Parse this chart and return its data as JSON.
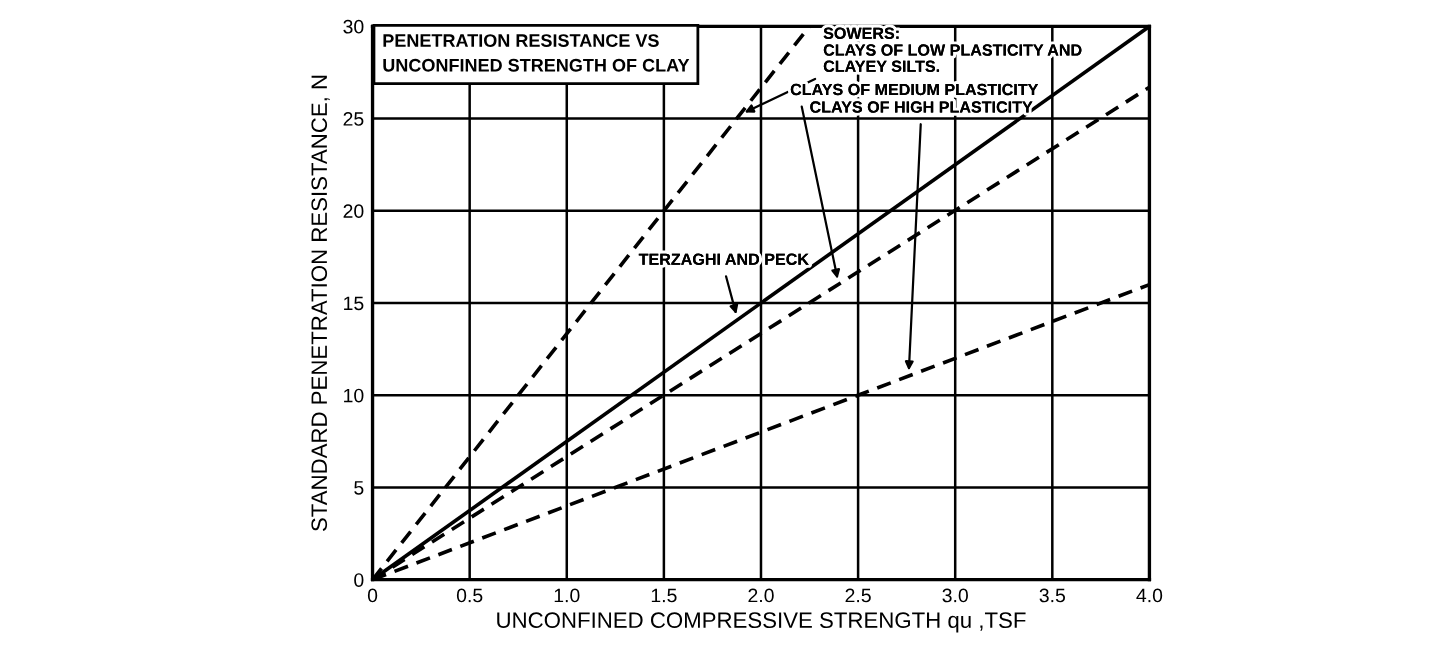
{
  "chart_data": {
    "type": "line",
    "title": "PENETRATION RESISTANCE VS\nUNCONFINED STRENGTH OF CLAY",
    "xlabel": "UNCONFINED COMPRESSIVE STRENGTH qu ,TSF",
    "ylabel": "STANDARD PENETRATION RESISTANCE, N",
    "series": [
      {
        "name": "CLAYS OF LOW PLASTICITY AND\nCLAYEY SILTS.",
        "color": "#000000",
        "line_style": "dashed",
        "x": [
          0,
          2.25
        ],
        "values": [
          0,
          30
        ]
      },
      {
        "name": "TERZAGHI AND PECK",
        "color": "#000000",
        "line_style": "solid",
        "x": [
          0,
          4.0
        ],
        "values": [
          0,
          30
        ]
      },
      {
        "name": "CLAYS OF MEDIUM PLASTICITY",
        "color": "#000000",
        "line_style": "dashed",
        "x": [
          0,
          4.0
        ],
        "values": [
          0,
          26.7
        ]
      },
      {
        "name": "CLAYS OF HIGH PLASTICITY",
        "color": "#000000",
        "line_style": "dashed",
        "x": [
          0,
          4.0
        ],
        "values": [
          0,
          16
        ]
      }
    ],
    "annotations": [
      "SOWERS:"
    ],
    "xlim": [
      0,
      4.0
    ],
    "ylim": [
      0,
      30
    ],
    "xticks": [
      0,
      0.5,
      {
        "value": 1.0,
        "label": "1.0"
      },
      1.5,
      {
        "value": 2.0,
        "label": "2.0"
      },
      2.5,
      {
        "value": 3.0,
        "label": "3.0"
      },
      3.5,
      {
        "value": 4.0,
        "label": "4.0"
      }
    ],
    "yticks": [
      0,
      5,
      10,
      15,
      20,
      25,
      30
    ],
    "grid": true,
    "legend": false
  }
}
